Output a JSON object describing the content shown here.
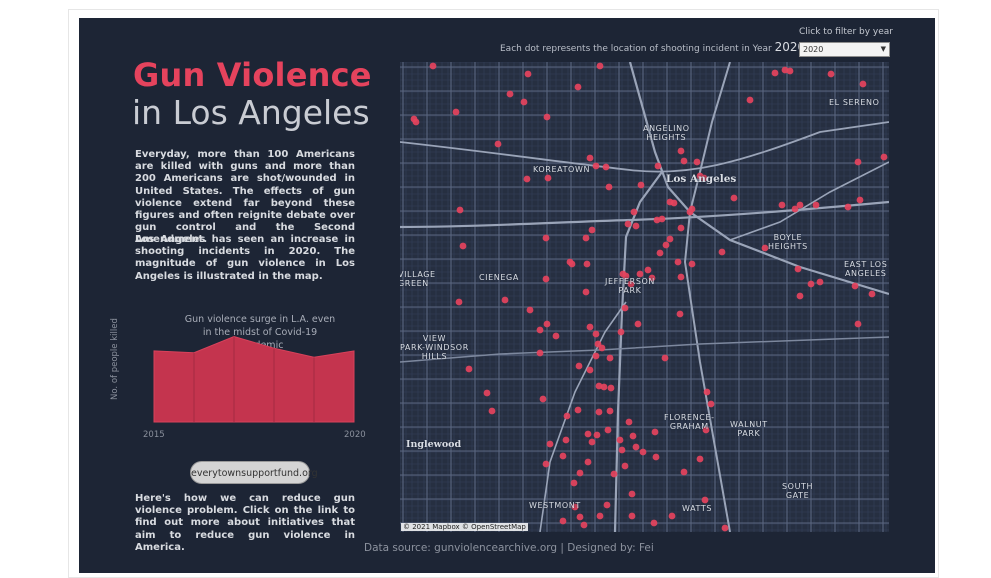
{
  "title": {
    "line1": "Gun Violence",
    "line2": "in Los Angeles"
  },
  "intro": {
    "paragraph1": "Everyday, more than 100 Americans are killed with guns and more than 200 Americans are shot/wounded in United States. The effects of gun violence extend far beyond these figures and often reignite debate over gun control and the Second Amendment.",
    "paragraph2": "Los Angeles has seen an increase in shooting incidents in 2020. The magnitude of gun violence in Los Angeles is illustrated in the map."
  },
  "mini_chart": {
    "annotation": "Gun violence surge in L.A. even in the midst of Covid-19 pandemic",
    "ylabel": "No. of people killed",
    "x_start": "2015",
    "x_end": "2020"
  },
  "chart_data": {
    "type": "area",
    "x": [
      2015,
      2016,
      2017,
      2018,
      2019,
      2020
    ],
    "y_relative": [
      0.79,
      0.77,
      0.95,
      0.82,
      0.72,
      0.79
    ],
    "xlabel": "",
    "ylabel": "No. of people killed"
  },
  "link_button": {
    "label": "everytownsupportfund.org"
  },
  "outro": "Here's how we can reduce gun violence problem. Click on the link to find out more about initiatives that aim to reduce gun violence in America.",
  "map": {
    "note": "Each dot represents the location of shooting incident in Year",
    "year": "2020",
    "filter_label": "Click to filter by year",
    "filter_value": "2020",
    "attribution": "© 2021 Mapbox © OpenStreetMap",
    "labels": {
      "angelino": "ANGELINO\nHEIGHTS",
      "el_sereno": "EL SERENO",
      "koreatown": "KOREATOWN",
      "los_angeles": "Los Angeles",
      "boyle": "BOYLE\nHEIGHTS",
      "east_la": "EAST LOS\nANGELES",
      "village": "VILLAGE\nGREEN",
      "cienega": "CIENEGA",
      "jefferson": "JEFFERSON\nPARK",
      "view_park": "VIEW\nPARK-WINDSOR\nHILLS",
      "inglewood": "Inglewood",
      "florence": "FLORENCE-\nGRAHAM",
      "walnut": "WALNUT\nPARK",
      "south_gate": "SOUTH\nGATE",
      "westmont": "WESTMONT",
      "watts": "WATTS"
    },
    "dot_color": "#e5435d"
  },
  "footer": {
    "text": "Data source:  gunviolencearchive.org   |   Designed by: Fei"
  }
}
